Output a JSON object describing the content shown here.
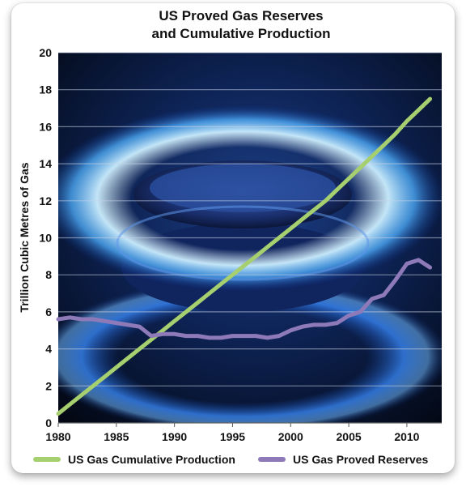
{
  "chart_data": {
    "type": "line",
    "title_line1": "US Proved Gas Reserves",
    "title_line2": "and Cumulative Production",
    "xlabel": "",
    "ylabel": "Trillion Cubic Metres of Gas",
    "xlim": [
      1980,
      2013
    ],
    "ylim": [
      0,
      20
    ],
    "x_ticks": [
      1980,
      1985,
      1990,
      1995,
      2000,
      2005,
      2010
    ],
    "y_ticks": [
      0,
      2,
      4,
      6,
      8,
      10,
      12,
      14,
      16,
      18,
      20
    ],
    "grid": true,
    "legend_position": "bottom",
    "series": [
      {
        "name": "US Gas Cumulative Production",
        "color": "#a6cf6f",
        "x": [
          1980,
          1981,
          1982,
          1983,
          1984,
          1985,
          1986,
          1987,
          1988,
          1989,
          1990,
          1991,
          1992,
          1993,
          1994,
          1995,
          1996,
          1997,
          1998,
          1999,
          2000,
          2001,
          2002,
          2003,
          2004,
          2005,
          2006,
          2007,
          2008,
          2009,
          2010,
          2011,
          2012
        ],
        "values": [
          0.5,
          1.0,
          1.5,
          2.0,
          2.5,
          3.0,
          3.5,
          4.0,
          4.5,
          5.0,
          5.5,
          6.0,
          6.5,
          7.0,
          7.5,
          8.0,
          8.5,
          9.0,
          9.5,
          10.0,
          10.5,
          11.0,
          11.5,
          12.0,
          12.6,
          13.2,
          13.8,
          14.4,
          15.0,
          15.6,
          16.3,
          16.9,
          17.5
        ]
      },
      {
        "name": "US Gas Proved Reserves",
        "color": "#8e7ab8",
        "x": [
          1980,
          1981,
          1982,
          1983,
          1984,
          1985,
          1986,
          1987,
          1988,
          1989,
          1990,
          1991,
          1992,
          1993,
          1994,
          1995,
          1996,
          1997,
          1998,
          1999,
          2000,
          2001,
          2002,
          2003,
          2004,
          2005,
          2006,
          2007,
          2008,
          2009,
          2010,
          2011,
          2012
        ],
        "values": [
          5.6,
          5.7,
          5.6,
          5.6,
          5.5,
          5.4,
          5.3,
          5.2,
          4.7,
          4.8,
          4.8,
          4.7,
          4.7,
          4.6,
          4.6,
          4.7,
          4.7,
          4.7,
          4.6,
          4.7,
          5.0,
          5.2,
          5.3,
          5.3,
          5.4,
          5.8,
          6.0,
          6.7,
          6.9,
          7.7,
          8.6,
          8.8,
          8.4
        ]
      }
    ]
  }
}
